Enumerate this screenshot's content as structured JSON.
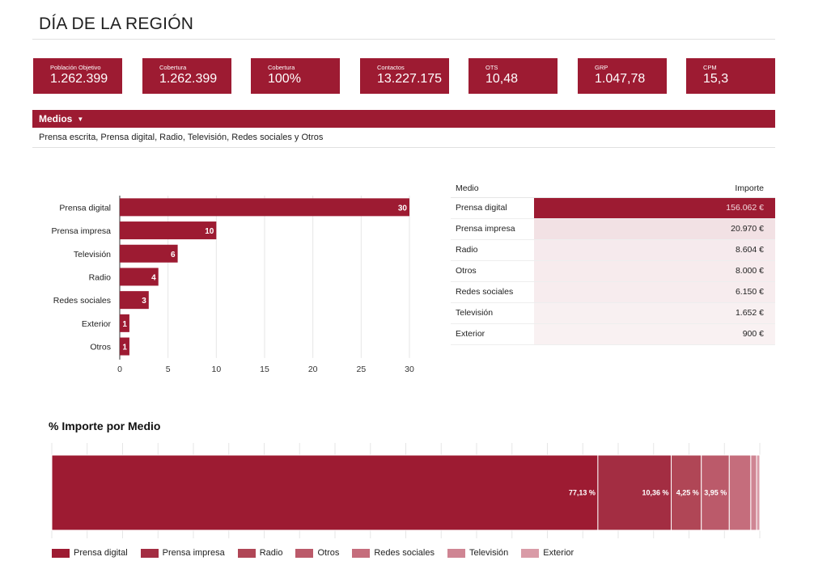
{
  "page": {
    "title": "DÍA DE LA REGIÓN"
  },
  "kpis": [
    {
      "label": "Población Objetivo",
      "value": "1.262.399"
    },
    {
      "label": "Cobertura",
      "value": "1.262.399"
    },
    {
      "label": "Cobertura",
      "value": "100%"
    },
    {
      "label": "Contactos",
      "value": "13.227.175"
    },
    {
      "label": "OTS",
      "value": "10,48"
    },
    {
      "label": "GRP",
      "value": "1.047,78"
    },
    {
      "label": "CPM",
      "value": "15,3"
    }
  ],
  "filter": {
    "label": "Medios",
    "value": "Prensa escrita, Prensa digital, Radio, Televisión, Redes sociales y Otros"
  },
  "colors": {
    "primary": "#9d1b32",
    "shade1": "#a32d42",
    "shade2": "#b04656",
    "shade3": "#bb5a6a",
    "shade4": "#c56d7c",
    "shade5": "#cf8593",
    "shade6": "#d99ba7"
  },
  "table": {
    "headers": {
      "medio": "Medio",
      "importe": "Importe"
    },
    "rows": [
      {
        "medio": "Prensa digital",
        "importe": "156.062 €",
        "amount": 156062
      },
      {
        "medio": "Prensa impresa",
        "importe": "20.970 €",
        "amount": 20970
      },
      {
        "medio": "Radio",
        "importe": "8.604 €",
        "amount": 8604
      },
      {
        "medio": "Otros",
        "importe": "8.000 €",
        "amount": 8000
      },
      {
        "medio": "Redes sociales",
        "importe": "6.150 €",
        "amount": 6150
      },
      {
        "medio": "Televisión",
        "importe": "1.652 €",
        "amount": 1652
      },
      {
        "medio": "Exterior",
        "importe": "900 €",
        "amount": 900
      }
    ]
  },
  "chart_data": [
    {
      "type": "bar",
      "orientation": "horizontal",
      "categories": [
        "Prensa digital",
        "Prensa impresa",
        "Televisión",
        "Radio",
        "Redes sociales",
        "Exterior",
        "Otros"
      ],
      "values": [
        30,
        10,
        6,
        4,
        3,
        1,
        1
      ],
      "xlim": [
        0,
        30
      ],
      "xticks": [
        0,
        5,
        10,
        15,
        20,
        25,
        30
      ],
      "grid": true,
      "legend": "none"
    },
    {
      "type": "bar",
      "orientation": "horizontal",
      "stacked": true,
      "title": "% Importe por Medio",
      "series": [
        {
          "name": "Prensa digital",
          "value": 77.13,
          "label": "77,13 %"
        },
        {
          "name": "Prensa impresa",
          "value": 10.36,
          "label": "10,36 %"
        },
        {
          "name": "Radio",
          "value": 4.25,
          "label": "4,25 %"
        },
        {
          "name": "Otros",
          "value": 3.95,
          "label": "3,95 %"
        },
        {
          "name": "Redes sociales",
          "value": 3.04,
          "label": ""
        },
        {
          "name": "Televisión",
          "value": 0.82,
          "label": ""
        },
        {
          "name": "Exterior",
          "value": 0.45,
          "label": ""
        }
      ],
      "xlim": [
        0,
        100
      ],
      "grid": true,
      "legend": "bottom"
    }
  ]
}
